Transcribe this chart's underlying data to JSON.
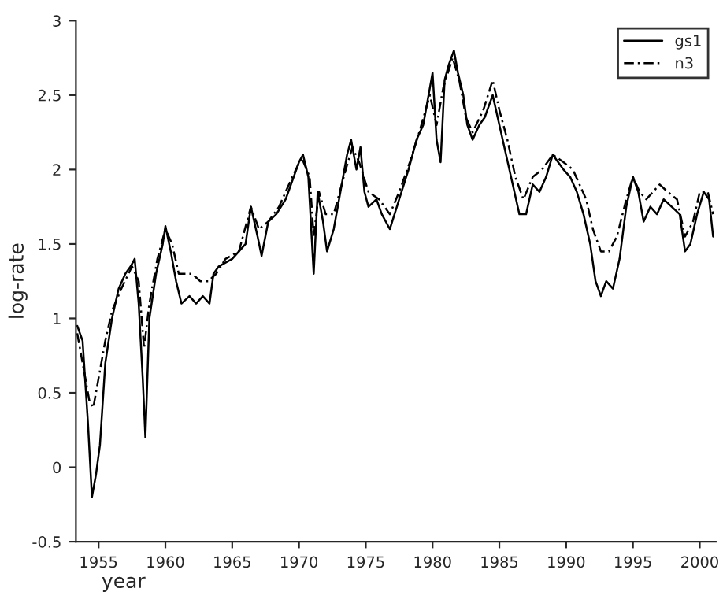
{
  "chart_data": {
    "type": "line",
    "xlabel": "year",
    "ylabel": "log-rate",
    "xlim": [
      1953.3,
      2001.2
    ],
    "xticks": [
      1955,
      1960,
      1965,
      1970,
      1975,
      1980,
      1985,
      1990,
      1995,
      2000
    ],
    "ylim": [
      -0.5,
      3
    ],
    "yticks": [
      -0.5,
      0,
      0.5,
      1,
      1.5,
      2,
      2.5,
      3
    ],
    "legend": "top right",
    "grid": false,
    "marker": "none",
    "series": [
      {
        "name": "gs1",
        "color": "#000000",
        "line_style": "solid",
        "x": [
          1953.4,
          1953.8,
          1954.2,
          1954.5,
          1954.8,
          1955.1,
          1955.5,
          1956.0,
          1956.5,
          1957.0,
          1957.4,
          1957.7,
          1958.0,
          1958.3,
          1958.5,
          1958.8,
          1959.3,
          1959.8,
          1960.0,
          1960.4,
          1960.8,
          1961.2,
          1961.8,
          1962.3,
          1962.8,
          1963.3,
          1963.6,
          1964.0,
          1965.0,
          1966.0,
          1966.4,
          1966.9,
          1967.2,
          1967.7,
          1968.3,
          1969.0,
          1969.6,
          1970.0,
          1970.3,
          1970.7,
          1971.1,
          1971.4,
          1971.8,
          1972.1,
          1972.6,
          1973.2,
          1973.6,
          1973.9,
          1974.3,
          1974.6,
          1974.9,
          1975.2,
          1975.8,
          1976.2,
          1976.8,
          1977.5,
          1978.2,
          1978.8,
          1979.3,
          1979.8,
          1980.0,
          1980.3,
          1980.6,
          1980.9,
          1981.2,
          1981.6,
          1981.9,
          1982.3,
          1982.6,
          1983.0,
          1983.5,
          1983.9,
          1984.5,
          1985.0,
          1985.5,
          1986.0,
          1986.5,
          1987.0,
          1987.5,
          1988.0,
          1988.5,
          1989.0,
          1989.4,
          1989.8,
          1990.3,
          1990.8,
          1991.3,
          1991.8,
          1992.2,
          1992.6,
          1993.0,
          1993.5,
          1994.0,
          1994.5,
          1995.0,
          1995.4,
          1995.8,
          1996.3,
          1996.8,
          1997.3,
          1997.9,
          1998.5,
          1998.9,
          1999.3,
          1999.8,
          2000.3,
          2000.7,
          2001.0
        ],
        "values": [
          0.95,
          0.85,
          0.3,
          -0.2,
          -0.05,
          0.15,
          0.7,
          1.0,
          1.2,
          1.3,
          1.35,
          1.4,
          1.1,
          0.6,
          0.2,
          1.0,
          1.3,
          1.5,
          1.62,
          1.45,
          1.25,
          1.1,
          1.15,
          1.1,
          1.15,
          1.1,
          1.3,
          1.35,
          1.4,
          1.5,
          1.75,
          1.55,
          1.42,
          1.65,
          1.7,
          1.8,
          1.95,
          2.05,
          2.1,
          1.95,
          1.3,
          1.85,
          1.65,
          1.45,
          1.6,
          1.9,
          2.1,
          2.2,
          2.0,
          2.15,
          1.85,
          1.75,
          1.8,
          1.7,
          1.6,
          1.8,
          2.0,
          2.2,
          2.3,
          2.55,
          2.65,
          2.2,
          2.05,
          2.6,
          2.7,
          2.8,
          2.65,
          2.5,
          2.3,
          2.2,
          2.3,
          2.35,
          2.5,
          2.3,
          2.1,
          1.9,
          1.7,
          1.7,
          1.9,
          1.85,
          1.95,
          2.1,
          2.05,
          2.0,
          1.95,
          1.85,
          1.7,
          1.5,
          1.25,
          1.15,
          1.25,
          1.2,
          1.4,
          1.75,
          1.95,
          1.85,
          1.65,
          1.75,
          1.7,
          1.8,
          1.75,
          1.7,
          1.45,
          1.5,
          1.7,
          1.85,
          1.8,
          1.55
        ]
      },
      {
        "name": "n3",
        "color": "#000000",
        "line_style": "dashed",
        "x": [
          1953.4,
          1953.8,
          1954.3,
          1954.6,
          1955.0,
          1955.5,
          1956.0,
          1956.7,
          1957.5,
          1958.0,
          1958.4,
          1958.8,
          1959.4,
          1960.0,
          1960.5,
          1961.0,
          1961.5,
          1962.0,
          1962.6,
          1963.2,
          1963.8,
          1964.5,
          1965.5,
          1966.4,
          1967.0,
          1967.7,
          1968.5,
          1969.5,
          1970.2,
          1970.8,
          1971.1,
          1971.5,
          1972.0,
          1972.6,
          1973.5,
          1974.0,
          1974.5,
          1975.2,
          1976.0,
          1976.8,
          1977.5,
          1978.3,
          1979.0,
          1979.8,
          1980.3,
          1980.8,
          1981.5,
          1982.0,
          1982.5,
          1983.0,
          1983.8,
          1984.5,
          1985.0,
          1985.6,
          1986.2,
          1986.8,
          1987.5,
          1988.2,
          1989.0,
          1989.8,
          1990.5,
          1991.0,
          1991.5,
          1992.0,
          1992.6,
          1993.2,
          1993.8,
          1994.5,
          1995.0,
          1995.5,
          1996.0,
          1996.5,
          1997.0,
          1997.6,
          1998.3,
          1998.9,
          1999.5,
          2000.0,
          2000.6,
          2001.0
        ],
        "values": [
          0.9,
          0.7,
          0.45,
          0.4,
          0.6,
          0.85,
          1.05,
          1.2,
          1.35,
          1.25,
          0.8,
          1.1,
          1.4,
          1.6,
          1.5,
          1.3,
          1.3,
          1.3,
          1.25,
          1.25,
          1.3,
          1.4,
          1.45,
          1.75,
          1.6,
          1.65,
          1.75,
          1.95,
          2.08,
          1.95,
          1.55,
          1.85,
          1.7,
          1.7,
          2.0,
          2.15,
          2.05,
          1.85,
          1.8,
          1.7,
          1.85,
          2.05,
          2.25,
          2.5,
          2.3,
          2.55,
          2.75,
          2.6,
          2.35,
          2.25,
          2.4,
          2.6,
          2.4,
          2.2,
          1.95,
          1.8,
          1.95,
          2.0,
          2.1,
          2.05,
          2.0,
          1.9,
          1.8,
          1.6,
          1.45,
          1.45,
          1.55,
          1.8,
          1.95,
          1.85,
          1.8,
          1.85,
          1.9,
          1.85,
          1.8,
          1.55,
          1.65,
          1.85,
          1.85,
          1.7
        ]
      }
    ]
  }
}
